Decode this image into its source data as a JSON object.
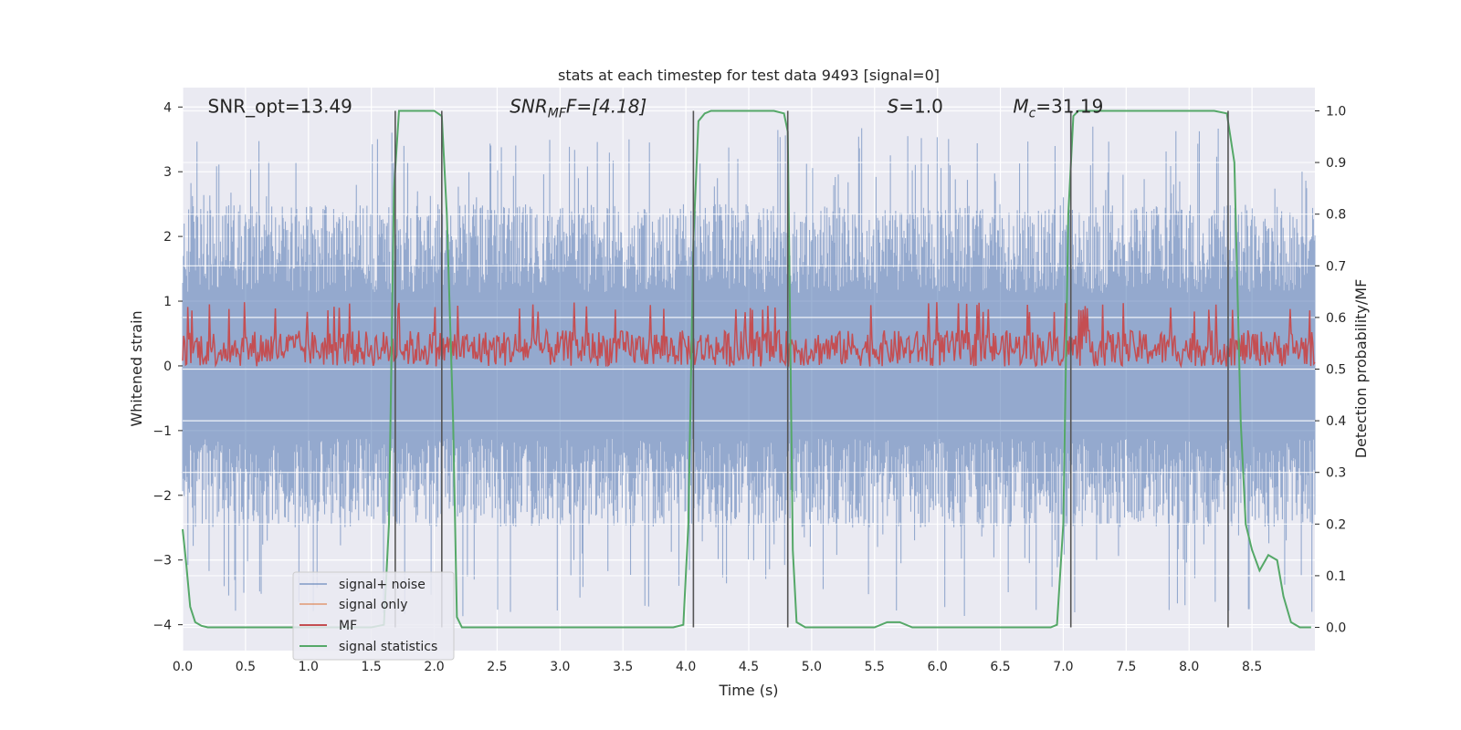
{
  "chart_data": {
    "type": "line",
    "title": "stats at each timestep for test data 9493 [signal=0]",
    "xlabel": "Time (s)",
    "ylabel_left": "Whitened strain",
    "ylabel_right": "Detection probability/MF",
    "xlim": [
      0.0,
      9.0
    ],
    "ylim_left": [
      -4.4,
      4.3
    ],
    "ylim_right": [
      -0.045,
      1.045
    ],
    "xticks": [
      "0.0",
      "0.5",
      "1.0",
      "1.5",
      "2.0",
      "2.5",
      "3.0",
      "3.5",
      "4.0",
      "4.5",
      "5.0",
      "5.5",
      "6.0",
      "6.5",
      "7.0",
      "7.5",
      "8.0",
      "8.5"
    ],
    "yticks_left": [
      "−4",
      "−3",
      "−2",
      "−1",
      "0",
      "1",
      "2",
      "3",
      "4"
    ],
    "yticks_right": [
      "0.0",
      "0.1",
      "0.2",
      "0.3",
      "0.4",
      "0.5",
      "0.6",
      "0.7",
      "0.8",
      "0.9",
      "1.0"
    ],
    "annotations": [
      {
        "text": "SNR_opt=13.49",
        "x": 0.2,
        "y": 4.0
      },
      {
        "text": "SNR",
        "sub": "MF",
        "rest": "F=[4.18]",
        "x": 2.6,
        "y": 4.0
      },
      {
        "text": "S",
        "rest": "=1.0",
        "x": 5.6,
        "y": 4.0
      },
      {
        "text": "M",
        "sub": "c",
        "rest": "=31.19",
        "x": 6.6,
        "y": 4.0
      }
    ],
    "vlines": [
      1.69,
      2.06,
      4.06,
      4.81,
      7.06,
      8.31
    ],
    "legend": {
      "placement": "lower-left",
      "entries": [
        "signal+ noise",
        "signal only",
        "MF",
        "signal statistics"
      ]
    },
    "series": [
      {
        "name": "signal+ noise",
        "axis": "left",
        "color": "#4c72b0",
        "style": "noise-band",
        "envelope": [
          -2.5,
          2.5
        ]
      },
      {
        "name": "signal only",
        "axis": "left",
        "color": "#dd8452",
        "values": []
      },
      {
        "name": "MF",
        "axis": "right",
        "color": "#c44e52",
        "style": "noise-band",
        "mean": 0.54,
        "range": [
          0.5,
          0.63
        ]
      },
      {
        "name": "signal statistics",
        "axis": "right",
        "color": "#55a868",
        "x": [
          0.0,
          0.03,
          0.06,
          0.1,
          0.15,
          0.2,
          0.3,
          1.5,
          1.6,
          1.64,
          1.68,
          1.72,
          1.76,
          2.0,
          2.06,
          2.1,
          2.15,
          2.18,
          2.22,
          3.9,
          3.98,
          4.02,
          4.06,
          4.1,
          4.15,
          4.2,
          4.3,
          4.7,
          4.78,
          4.81,
          4.85,
          4.88,
          4.95,
          5.5,
          5.6,
          5.7,
          5.8,
          6.9,
          6.95,
          7.0,
          7.04,
          7.08,
          7.12,
          7.2,
          8.2,
          8.3,
          8.36,
          8.41,
          8.45,
          8.5,
          8.56,
          8.63,
          8.7,
          8.75,
          8.81,
          8.88,
          8.97
        ],
        "values": [
          0.19,
          0.12,
          0.04,
          0.01,
          0.003,
          0.0,
          0.0,
          0.0,
          0.005,
          0.2,
          0.85,
          1.0,
          1.0,
          1.0,
          0.99,
          0.8,
          0.4,
          0.02,
          0.0,
          0.0,
          0.005,
          0.2,
          0.75,
          0.98,
          0.995,
          1.0,
          1.0,
          1.0,
          0.995,
          0.96,
          0.15,
          0.01,
          0.0,
          0.0,
          0.01,
          0.01,
          0.0,
          0.0,
          0.005,
          0.2,
          0.8,
          0.99,
          1.0,
          1.0,
          1.0,
          0.995,
          0.9,
          0.4,
          0.2,
          0.15,
          0.11,
          0.14,
          0.13,
          0.06,
          0.01,
          0.0,
          0.0
        ]
      }
    ]
  }
}
